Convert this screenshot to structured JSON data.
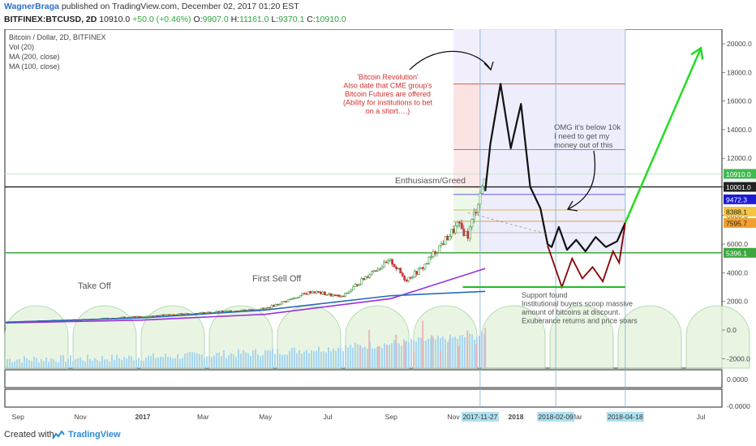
{
  "header": {
    "author": "WagnerBraga",
    "published": "published on TradingView.com, December 02, 2017 01:20 EST",
    "symbol": "BITFINEX:BTCUSD, 2D",
    "last": "10910.0",
    "change": "+50.0 (+0.46%)",
    "open_label": "O:",
    "open": "9907.0",
    "high_label": "H:",
    "high": "11161.0",
    "low_label": "L:",
    "low": "9370.1",
    "close_label": "C:",
    "close": "10910.0"
  },
  "legend": {
    "title": "Bitcoin / Dollar, 2D, BITFINEX",
    "vol": "Vol (20)",
    "ma200": "MA (200, close)",
    "ma100": "MA (100, close)"
  },
  "annotations": {
    "revolution": [
      "'Bitcoin Revolution'",
      "Also date that CME group's",
      "Bitcoin Futures are offered",
      "(Ability for institutions to bet",
      "on a short….)"
    ],
    "omg": [
      "OMG it's below 10k",
      "I need to get my",
      "money out of this"
    ],
    "enthusiasm": "Enthusiasm/Greed",
    "take_off": "Take Off",
    "first_sell_off": "First Sell Off",
    "support": [
      "Support found",
      "Institutional buyers scoop massive",
      "amount of bitcoins at discount.",
      "Exuberance returns and price soars"
    ]
  },
  "price_axis": {
    "ticks": [
      "20000.0",
      "18000.0",
      "16000.0",
      "14000.0",
      "12000.0",
      "10000.0",
      "8000.0",
      "6000.0",
      "4000.0",
      "2000.0",
      "0.0",
      "-2000.0"
    ],
    "badges": [
      {
        "label": "10910.0",
        "color": "#3fb950",
        "text_color": "#ffffff"
      },
      {
        "label": "10001.0",
        "color": "#222222",
        "text_color": "#ffffff"
      },
      {
        "label": "9472.3",
        "color": "#1b1bd6",
        "text_color": "#ffffff"
      },
      {
        "label": "8388.1",
        "color": "#f5c542",
        "text_color": "#222222"
      },
      {
        "label": "7595.7",
        "color": "#f0a030",
        "text_color": "#222222"
      },
      {
        "label": "5396.1",
        "color": "#3fa63f",
        "text_color": "#ffffff"
      }
    ]
  },
  "sub_axes": {
    "pane2_tick": "0.0000",
    "pane3_tick": "-0.0000"
  },
  "time_axis": {
    "ticks": [
      "Sep",
      "Nov",
      "2017",
      "Mar",
      "May",
      "Jul",
      "Sep",
      "Nov",
      "2018",
      "Mar",
      "Jul"
    ],
    "highlighted": [
      "2017-11-27",
      "2018-02-09",
      "2018-04-18"
    ]
  },
  "footer": {
    "created_with": "Created with",
    "brand": "TradingView"
  },
  "colors": {
    "ma200": "#9b30d9",
    "ma100": "#2a6ab8",
    "projection_green": "#22dd22",
    "drawing_black": "#111111",
    "drawing_red": "#8b0000",
    "support_line": "#22bb22"
  },
  "chart_data": {
    "type": "candlestick",
    "title": "Bitcoin / Dollar, 2D, BITFINEX",
    "ylim": [
      -2800,
      21000
    ],
    "x_range": [
      "2016-08-20",
      "2018-08-01"
    ],
    "series": [
      {
        "name": "BTCUSD (approx. close)",
        "x": [
          "2016-09-01",
          "2016-11-01",
          "2017-01-01",
          "2017-03-01",
          "2017-05-01",
          "2017-06-15",
          "2017-07-15",
          "2017-08-15",
          "2017-09-01",
          "2017-09-15",
          "2017-10-01",
          "2017-10-20",
          "2017-11-05",
          "2017-11-15",
          "2017-11-27",
          "2017-12-02"
        ],
        "values": [
          600,
          720,
          960,
          1200,
          1500,
          2700,
          2300,
          4200,
          4800,
          3500,
          4300,
          6000,
          7300,
          6600,
          9500,
          10910
        ]
      },
      {
        "name": "MA (200, close)",
        "x": [
          "2016-08-20",
          "2017-01-01",
          "2017-05-01",
          "2017-09-01",
          "2017-12-02"
        ],
        "values": [
          500,
          700,
          1100,
          2200,
          4300
        ]
      },
      {
        "name": "MA (100, close)",
        "x": [
          "2016-08-20",
          "2017-01-01",
          "2017-05-01",
          "2017-09-01",
          "2017-12-02"
        ],
        "values": [
          550,
          850,
          1400,
          2400,
          2700
        ]
      }
    ],
    "projection": {
      "x": [
        "2017-12-02",
        "2017-12-07",
        "2017-12-17",
        "2017-12-27",
        "2018-01-06",
        "2018-01-15",
        "2018-01-25",
        "2018-02-01",
        "2018-02-05",
        "2018-02-12",
        "2018-02-20",
        "2018-03-01",
        "2018-03-10",
        "2018-03-20",
        "2018-03-30",
        "2018-04-10",
        "2018-04-18"
      ],
      "values": [
        9700,
        13000,
        17200,
        12700,
        15800,
        10000,
        8500,
        6000,
        5800,
        7200,
        5600,
        6300,
        5500,
        6500,
        5800,
        6200,
        7500
      ]
    },
    "red_path": {
      "x": [
        "2018-02-01",
        "2018-02-15",
        "2018-02-25",
        "2018-03-07",
        "2018-03-17",
        "2018-03-27",
        "2018-04-06",
        "2018-04-12",
        "2018-04-18"
      ],
      "values": [
        5900,
        3000,
        5000,
        3600,
        4400,
        3400,
        5500,
        4700,
        7500
      ]
    },
    "green_projection": {
      "x": [
        "2018-04-18",
        "2018-07-01"
      ],
      "values": [
        7500,
        19700
      ]
    },
    "fib_levels": [
      17200,
      12600,
      10000,
      9472,
      8388,
      7596,
      6800,
      5396
    ],
    "support_level": 3000,
    "horizontal_line": 10001,
    "volume_axis_ticks": [
      2000,
      0,
      -2000
    ]
  }
}
